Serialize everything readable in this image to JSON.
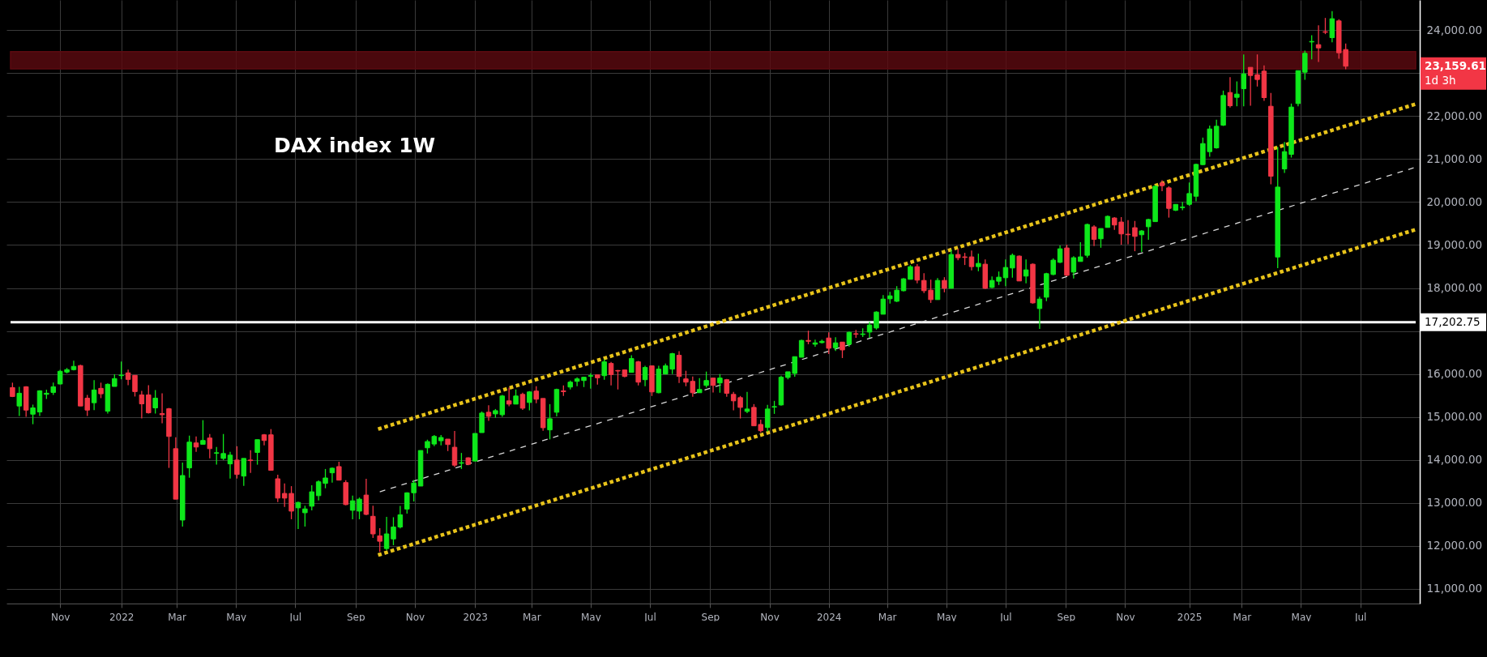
{
  "chart_data": {
    "type": "candlestick",
    "title": "DAX index 1W",
    "x": [
      "2021-09-13",
      "2021-09-20",
      "2021-09-27",
      "2021-10-04",
      "2021-10-11",
      "2021-10-18",
      "2021-10-25",
      "2021-11-01",
      "2021-11-08",
      "2021-11-15",
      "2021-11-22",
      "2021-11-29",
      "2021-12-06",
      "2021-12-13",
      "2021-12-20",
      "2021-12-27",
      "2022-01-03",
      "2022-01-10",
      "2022-01-17",
      "2022-01-24",
      "2022-01-31",
      "2022-02-07",
      "2022-02-14",
      "2022-02-21",
      "2022-02-28",
      "2022-03-07",
      "2022-03-14",
      "2022-03-21",
      "2022-03-28",
      "2022-04-04",
      "2022-04-11",
      "2022-04-18",
      "2022-04-25",
      "2022-05-02",
      "2022-05-09",
      "2022-05-16",
      "2022-05-23",
      "2022-05-30",
      "2022-06-06",
      "2022-06-13",
      "2022-06-20",
      "2022-06-27",
      "2022-07-04",
      "2022-07-11",
      "2022-07-18",
      "2022-07-25",
      "2022-08-01",
      "2022-08-08",
      "2022-08-15",
      "2022-08-22",
      "2022-08-29",
      "2022-09-05",
      "2022-09-12",
      "2022-09-19",
      "2022-09-26",
      "2022-10-03",
      "2022-10-10",
      "2022-10-17",
      "2022-10-24",
      "2022-10-31",
      "2022-11-07",
      "2022-11-14",
      "2022-11-21",
      "2022-11-28",
      "2022-12-05",
      "2022-12-12",
      "2022-12-19",
      "2022-12-26",
      "2023-01-02",
      "2023-01-09",
      "2023-01-16",
      "2023-01-23",
      "2023-01-30",
      "2023-02-06",
      "2023-02-13",
      "2023-02-20",
      "2023-02-27",
      "2023-03-06",
      "2023-03-13",
      "2023-03-20",
      "2023-03-27",
      "2023-04-03",
      "2023-04-10",
      "2023-04-17",
      "2023-04-24",
      "2023-05-01",
      "2023-05-08",
      "2023-05-15",
      "2023-05-22",
      "2023-05-29",
      "2023-06-05",
      "2023-06-12",
      "2023-06-19",
      "2023-06-26",
      "2023-07-03",
      "2023-07-10",
      "2023-07-17",
      "2023-07-24",
      "2023-07-31",
      "2023-08-07",
      "2023-08-14",
      "2023-08-21",
      "2023-08-28",
      "2023-09-04",
      "2023-09-11",
      "2023-09-18",
      "2023-09-25",
      "2023-10-02",
      "2023-10-09",
      "2023-10-16",
      "2023-10-23",
      "2023-10-30",
      "2023-11-06",
      "2023-11-13",
      "2023-11-20",
      "2023-11-27",
      "2023-12-04",
      "2023-12-11",
      "2023-12-18",
      "2023-12-25",
      "2024-01-01",
      "2024-01-08",
      "2024-01-15",
      "2024-01-22",
      "2024-01-29",
      "2024-02-05",
      "2024-02-12",
      "2024-02-19",
      "2024-02-26",
      "2024-03-04",
      "2024-03-11",
      "2024-03-18",
      "2024-03-25",
      "2024-04-01",
      "2024-04-08",
      "2024-04-15",
      "2024-04-22",
      "2024-04-29",
      "2024-05-06",
      "2024-05-13",
      "2024-05-20",
      "2024-05-27",
      "2024-06-03",
      "2024-06-10",
      "2024-06-17",
      "2024-06-24",
      "2024-07-01",
      "2024-07-08",
      "2024-07-15",
      "2024-07-22",
      "2024-07-29",
      "2024-08-05",
      "2024-08-12",
      "2024-08-19",
      "2024-08-26",
      "2024-09-02",
      "2024-09-09",
      "2024-09-16",
      "2024-09-23",
      "2024-09-30",
      "2024-10-07",
      "2024-10-14",
      "2024-10-21",
      "2024-10-28",
      "2024-11-04",
      "2024-11-11",
      "2024-11-18",
      "2024-11-25",
      "2024-12-02",
      "2024-12-09",
      "2024-12-16",
      "2024-12-23",
      "2024-12-30",
      "2025-01-06",
      "2025-01-13",
      "2025-01-20",
      "2025-01-27",
      "2025-02-03",
      "2025-02-10",
      "2025-02-17",
      "2025-02-24",
      "2025-03-03",
      "2025-03-10",
      "2025-03-17",
      "2025-03-24",
      "2025-03-31",
      "2025-04-07",
      "2025-04-14",
      "2025-04-21",
      "2025-04-28",
      "2025-05-05",
      "2025-05-12",
      "2025-05-19",
      "2025-05-26",
      "2025-06-02",
      "2025-06-09",
      "2025-06-16"
    ],
    "ohlc": [
      [
        15684,
        15798,
        15463,
        15476
      ],
      [
        15255,
        15703,
        15021,
        15552
      ],
      [
        15703,
        15716,
        15002,
        15160
      ],
      [
        15065,
        15287,
        14832,
        15211
      ],
      [
        15116,
        15621,
        15021,
        15609
      ],
      [
        15527,
        15634,
        15419,
        15552
      ],
      [
        15571,
        15798,
        15514,
        15703
      ],
      [
        15767,
        16095,
        15760,
        16063
      ],
      [
        16045,
        16139,
        16013,
        16101
      ],
      [
        16101,
        16310,
        16082,
        16177
      ],
      [
        16196,
        16215,
        15255,
        15255
      ],
      [
        15438,
        15514,
        15021,
        15160
      ],
      [
        15331,
        15855,
        15160,
        15628
      ],
      [
        15666,
        15798,
        15438,
        15539
      ],
      [
        15135,
        15779,
        15078,
        15760
      ],
      [
        15710,
        15994,
        15710,
        15893
      ],
      [
        15962,
        16291,
        15874,
        15975
      ],
      [
        16026,
        16101,
        15741,
        15874
      ],
      [
        15969,
        15969,
        15476,
        15590
      ],
      [
        15514,
        15609,
        14964,
        15305
      ],
      [
        15514,
        15741,
        15078,
        15097
      ],
      [
        15211,
        15628,
        15078,
        15438
      ],
      [
        15078,
        15552,
        14851,
        15053
      ],
      [
        15192,
        15211,
        13815,
        14547
      ],
      [
        14263,
        14528,
        13088,
        13088
      ],
      [
        12602,
        13941,
        12450,
        13638
      ],
      [
        13815,
        14566,
        13587,
        14415
      ],
      [
        14396,
        14547,
        14187,
        14301
      ],
      [
        14364,
        14926,
        14364,
        14453
      ],
      [
        14510,
        14604,
        14036,
        14263
      ],
      [
        14156,
        14301,
        13890,
        14168
      ],
      [
        14036,
        14604,
        13998,
        14150
      ],
      [
        13909,
        14187,
        13568,
        14112
      ],
      [
        13998,
        14320,
        13568,
        13663
      ],
      [
        13625,
        14036,
        13398,
        14036
      ],
      [
        13998,
        14225,
        13701,
        13985
      ],
      [
        14175,
        14472,
        13890,
        14472
      ],
      [
        14585,
        14604,
        14339,
        14453
      ],
      [
        14585,
        14718,
        13758,
        13758
      ],
      [
        13562,
        13657,
        13019,
        13113
      ],
      [
        13221,
        13455,
        12905,
        13113
      ],
      [
        13221,
        13391,
        12621,
        12810
      ],
      [
        12886,
        13031,
        12393,
        13012
      ],
      [
        12772,
        12937,
        12450,
        12861
      ],
      [
        12924,
        13410,
        12829,
        13259
      ],
      [
        13170,
        13524,
        13056,
        13492
      ],
      [
        13455,
        13790,
        13341,
        13581
      ],
      [
        13701,
        13827,
        13474,
        13808
      ],
      [
        13846,
        13960,
        13530,
        13530
      ],
      [
        13474,
        13530,
        12943,
        12962
      ],
      [
        12829,
        13170,
        12621,
        13050
      ],
      [
        12810,
        13126,
        12621,
        13088
      ],
      [
        13183,
        13562,
        12715,
        12734
      ],
      [
        12690,
        12937,
        12185,
        12280
      ],
      [
        12235,
        12412,
        11863,
        12109
      ],
      [
        11939,
        12677,
        11901,
        12280
      ],
      [
        12163,
        12668,
        12018,
        12440
      ],
      [
        12440,
        12933,
        12409,
        12724
      ],
      [
        12857,
        13248,
        12750,
        13236
      ],
      [
        13236,
        13532,
        13034,
        13463
      ],
      [
        13393,
        14220,
        13393,
        14220
      ],
      [
        14283,
        14472,
        14151,
        14428
      ],
      [
        14371,
        14580,
        14321,
        14548
      ],
      [
        14447,
        14580,
        14340,
        14523
      ],
      [
        14485,
        14485,
        14207,
        14359
      ],
      [
        14296,
        14674,
        13835,
        13879
      ],
      [
        13923,
        14163,
        13791,
        13936
      ],
      [
        14050,
        14062,
        13879,
        13898
      ],
      [
        13974,
        14617,
        13974,
        14617
      ],
      [
        14636,
        15129,
        14636,
        15091
      ],
      [
        15110,
        15274,
        14908,
        15015
      ],
      [
        15072,
        15185,
        14983,
        15147
      ],
      [
        15053,
        15513,
        15002,
        15488
      ],
      [
        15375,
        15684,
        15248,
        15299
      ],
      [
        15299,
        15640,
        15299,
        15488
      ],
      [
        15526,
        15564,
        15166,
        15204
      ],
      [
        15337,
        15602,
        15154,
        15583
      ],
      [
        15602,
        15715,
        15318,
        15413
      ],
      [
        15431,
        15431,
        14680,
        14750
      ],
      [
        14700,
        15299,
        14479,
        14958
      ],
      [
        15110,
        15659,
        15015,
        15640
      ],
      [
        15608,
        15734,
        15488,
        15589
      ],
      [
        15696,
        15848,
        15640,
        15810
      ],
      [
        15829,
        15924,
        15715,
        15886
      ],
      [
        15848,
        15936,
        15696,
        15924
      ],
      [
        15949,
        16018,
        15659,
        15961
      ],
      [
        15980,
        15980,
        15753,
        15911
      ],
      [
        15961,
        16340,
        15867,
        16283
      ],
      [
        16245,
        16283,
        15734,
        15987
      ],
      [
        16081,
        16094,
        15640,
        16069
      ],
      [
        16094,
        16094,
        15924,
        15943
      ],
      [
        16037,
        16435,
        16037,
        16359
      ],
      [
        16283,
        16302,
        15734,
        15810
      ],
      [
        15867,
        16189,
        15715,
        16151
      ],
      [
        16189,
        16189,
        15488,
        15583
      ],
      [
        15564,
        16189,
        15551,
        16113
      ],
      [
        15999,
        16245,
        15999,
        16189
      ],
      [
        16113,
        16492,
        15999,
        16473
      ],
      [
        16435,
        16529,
        15791,
        15943
      ],
      [
        15886,
        16075,
        15715,
        15810
      ],
      [
        15829,
        15943,
        15469,
        15564
      ],
      [
        15564,
        15905,
        15564,
        15640
      ],
      [
        15734,
        16056,
        15684,
        15848
      ],
      [
        15905,
        15905,
        15570,
        15734
      ],
      [
        15791,
        15999,
        15564,
        15905
      ],
      [
        15867,
        15886,
        15469,
        15551
      ],
      [
        15526,
        15583,
        15154,
        15375
      ],
      [
        15450,
        15488,
        14965,
        15223
      ],
      [
        15129,
        15583,
        15091,
        15185
      ],
      [
        15223,
        15299,
        14794,
        14794
      ],
      [
        14826,
        14939,
        14643,
        14680
      ],
      [
        14756,
        15280,
        14662,
        15185
      ],
      [
        15230,
        15375,
        15072,
        15242
      ],
      [
        15280,
        15961,
        15261,
        15924
      ],
      [
        15919,
        16051,
        15875,
        16051
      ],
      [
        16013,
        16403,
        15937,
        16403
      ],
      [
        16390,
        16799,
        16390,
        16780
      ],
      [
        16780,
        17007,
        16692,
        16761
      ],
      [
        16692,
        16799,
        16636,
        16724
      ],
      [
        16730,
        16799,
        16711,
        16761
      ],
      [
        16837,
        16969,
        16466,
        16598
      ],
      [
        16610,
        16856,
        16535,
        16724
      ],
      [
        16742,
        16742,
        16371,
        16560
      ],
      [
        16692,
        16988,
        16636,
        16969
      ],
      [
        16937,
        17026,
        16843,
        16925
      ],
      [
        16919,
        17063,
        16862,
        16931
      ],
      [
        16975,
        17214,
        16843,
        17139
      ],
      [
        17070,
        17459,
        17032,
        17441
      ],
      [
        17390,
        17837,
        17390,
        17742
      ],
      [
        17749,
        17912,
        17636,
        17818
      ],
      [
        17692,
        18044,
        17673,
        17950
      ],
      [
        17937,
        18233,
        17919,
        18214
      ],
      [
        18202,
        18535,
        18202,
        18497
      ],
      [
        18497,
        18554,
        18107,
        18183
      ],
      [
        18176,
        18346,
        17881,
        17937
      ],
      [
        17950,
        18195,
        17654,
        17730
      ],
      [
        17730,
        18233,
        17730,
        18176
      ],
      [
        18176,
        18252,
        17900,
        17994
      ],
      [
        17994,
        18893,
        17994,
        18780
      ],
      [
        18780,
        18912,
        18648,
        18705
      ],
      [
        18724,
        18818,
        18535,
        18711
      ],
      [
        18724,
        18874,
        18409,
        18497
      ],
      [
        18497,
        18799,
        18390,
        18573
      ],
      [
        18554,
        18667,
        17975,
        17994
      ],
      [
        18013,
        18271,
        17994,
        18176
      ],
      [
        18158,
        18384,
        18070,
        18252
      ],
      [
        18239,
        18667,
        18044,
        18478
      ],
      [
        18466,
        18799,
        18239,
        18761
      ],
      [
        18742,
        18761,
        18164,
        18164
      ],
      [
        18277,
        18667,
        18107,
        18422
      ],
      [
        18554,
        18573,
        17636,
        17654
      ],
      [
        17522,
        17799,
        17051,
        17742
      ],
      [
        17786,
        18352,
        17692,
        18334
      ],
      [
        18315,
        18686,
        18296,
        18648
      ],
      [
        18598,
        18988,
        18579,
        18912
      ],
      [
        18931,
        19007,
        18277,
        18296
      ],
      [
        18371,
        18742,
        18220,
        18705
      ],
      [
        18617,
        19063,
        18617,
        18724
      ],
      [
        18761,
        19497,
        18705,
        19478
      ],
      [
        19422,
        19459,
        18975,
        19132
      ],
      [
        19145,
        19384,
        18937,
        19384
      ],
      [
        19409,
        19686,
        19409,
        19667
      ],
      [
        19629,
        19648,
        19352,
        19466
      ],
      [
        19535,
        19648,
        19007,
        19258
      ],
      [
        19252,
        19579,
        19019,
        19239
      ],
      [
        19403,
        19560,
        18856,
        19201
      ],
      [
        19239,
        19346,
        18837,
        19327
      ],
      [
        19425,
        19613,
        19123,
        19594
      ],
      [
        19544,
        20393,
        19544,
        20367
      ],
      [
        20443,
        20506,
        20254,
        20380
      ],
      [
        20330,
        20367,
        19638,
        19852
      ],
      [
        19808,
        19946,
        19789,
        19946
      ],
      [
        19871,
        20003,
        19808,
        19884
      ],
      [
        19946,
        20455,
        19915,
        20198
      ],
      [
        20135,
        20895,
        20015,
        20876
      ],
      [
        20870,
        21499,
        20858,
        21360
      ],
      [
        21172,
        21781,
        21052,
        21700
      ],
      [
        21260,
        21914,
        21241,
        21763
      ],
      [
        21788,
        22592,
        21769,
        22479
      ],
      [
        22548,
        22907,
        22196,
        22240
      ],
      [
        22435,
        22806,
        22228,
        22511
      ],
      [
        22636,
        23434,
        22228,
        22982
      ],
      [
        23133,
        23133,
        22240,
        22944
      ],
      [
        22963,
        23434,
        22687,
        22850
      ],
      [
        23045,
        23177,
        22353,
        22429
      ],
      [
        22228,
        22536,
        20411,
        20600
      ],
      [
        18721,
        21279,
        18463,
        20348
      ],
      [
        20770,
        21398,
        20675,
        21172
      ],
      [
        21109,
        22291,
        21034,
        22209
      ],
      [
        22291,
        23057,
        22228,
        23057
      ],
      [
        23020,
        23522,
        22844,
        23460
      ],
      [
        23724,
        23881,
        23321,
        23736
      ],
      [
        23661,
        24113,
        23258,
        23585
      ],
      [
        23962,
        24283,
        23906,
        23950
      ],
      [
        23824,
        24440,
        23717,
        24264
      ],
      [
        24214,
        24251,
        23334,
        23472
      ],
      [
        23548,
        23686,
        23089,
        23159.61
      ]
    ],
    "colors": [
      "#f23645",
      "#0ee81b",
      "#f23645",
      "#0ee81b",
      "#0ee81b",
      "#0ee81b",
      "#0ee81b",
      "#0ee81b",
      "#0ee81b",
      "#0ee81b",
      "#f23645",
      "#f23645",
      "#0ee81b",
      "#f23645",
      "#0ee81b",
      "#0ee81b",
      "#0ee81b",
      "#f23645",
      "#f23645",
      "#f23645",
      "#f23645",
      "#0ee81b",
      "#f23645",
      "#f23645",
      "#f23645",
      "#0ee81b",
      "#0ee81b",
      "#f23645",
      "#0ee81b",
      "#f23645",
      "#0ee81b",
      "#0ee81b",
      "#0ee81b",
      "#f23645",
      "#0ee81b",
      "#f23645",
      "#0ee81b",
      "#f23645",
      "#f23645",
      "#f23645",
      "#f23645",
      "#f23645",
      "#0ee81b",
      "#0ee81b",
      "#0ee81b",
      "#0ee81b",
      "#0ee81b",
      "#0ee81b",
      "#f23645",
      "#f23645",
      "#0ee81b",
      "#0ee81b",
      "#f23645",
      "#f23645",
      "#f23645",
      "#0ee81b",
      "#0ee81b",
      "#0ee81b",
      "#0ee81b",
      "#0ee81b",
      "#0ee81b",
      "#0ee81b",
      "#0ee81b",
      "#0ee81b",
      "#f23645",
      "#f23645",
      "#0ee81b",
      "#f23645",
      "#0ee81b",
      "#0ee81b",
      "#f23645",
      "#0ee81b",
      "#0ee81b",
      "#f23645",
      "#0ee81b",
      "#f23645",
      "#0ee81b",
      "#f23645",
      "#f23645",
      "#0ee81b",
      "#0ee81b",
      "#f23645",
      "#0ee81b",
      "#0ee81b",
      "#0ee81b",
      "#0ee81b",
      "#f23645",
      "#0ee81b",
      "#f23645",
      "#f23645",
      "#f23645",
      "#0ee81b",
      "#f23645",
      "#0ee81b",
      "#f23645",
      "#0ee81b",
      "#0ee81b",
      "#0ee81b",
      "#f23645",
      "#f23645",
      "#f23645",
      "#0ee81b",
      "#0ee81b",
      "#f23645",
      "#0ee81b",
      "#f23645",
      "#f23645",
      "#f23645",
      "#0ee81b",
      "#f23645",
      "#f23645",
      "#0ee81b",
      "#0ee81b",
      "#0ee81b",
      "#0ee81b",
      "#0ee81b",
      "#0ee81b",
      "#f23645",
      "#0ee81b",
      "#0ee81b",
      "#f23645",
      "#0ee81b",
      "#f23645",
      "#0ee81b",
      "#f23645",
      "#0ee81b",
      "#0ee81b",
      "#0ee81b",
      "#0ee81b",
      "#0ee81b",
      "#0ee81b",
      "#0ee81b",
      "#0ee81b",
      "#f23645",
      "#f23645",
      "#f23645",
      "#0ee81b",
      "#f23645",
      "#0ee81b",
      "#f23645",
      "#f23645",
      "#f23645",
      "#0ee81b",
      "#f23645",
      "#0ee81b",
      "#0ee81b",
      "#0ee81b",
      "#0ee81b",
      "#f23645",
      "#0ee81b",
      "#f23645",
      "#0ee81b",
      "#0ee81b",
      "#0ee81b",
      "#0ee81b",
      "#f23645",
      "#0ee81b",
      "#0ee81b",
      "#0ee81b",
      "#f23645",
      "#0ee81b",
      "#0ee81b",
      "#f23645",
      "#f23645",
      "#f23645",
      "#f23645",
      "#0ee81b",
      "#0ee81b",
      "#0ee81b",
      "#f23645",
      "#f23645",
      "#0ee81b",
      "#0ee81b",
      "#0ee81b",
      "#0ee81b",
      "#0ee81b",
      "#0ee81b",
      "#0ee81b",
      "#0ee81b",
      "#f23645",
      "#0ee81b",
      "#0ee81b",
      "#f23645",
      "#f23645",
      "#f23645",
      "#f23645",
      "#0ee81b",
      "#0ee81b",
      "#0ee81b",
      "#0ee81b",
      "#0ee81b",
      "#0ee81b",
      "#f23645",
      "#f23645",
      "#0ee81b",
      "#f23645",
      "#f23645"
    ],
    "series": [
      {
        "type": "line",
        "x": [
          "2022-09-26",
          "2025-08-27"
        ],
        "values": [
          14730,
          22280
        ],
        "color": "#e8c31a",
        "line_style": "dotted"
      },
      {
        "type": "line",
        "x": [
          "2022-09-26",
          "2025-08-27"
        ],
        "values": [
          13260,
          20810
        ],
        "color": "#d9d9d9",
        "line_style": "dashed"
      },
      {
        "type": "line",
        "x": [
          "2022-09-26",
          "2025-08-27"
        ],
        "values": [
          11800,
          19360
        ],
        "color": "#e8c31a",
        "line_style": "dotted"
      }
    ],
    "xlim": [
      "2021-09-11",
      "2025-08-27"
    ],
    "xticks": [
      {
        "value": "2021-11-01",
        "label": "Nov"
      },
      {
        "value": "2022-01-03",
        "label": "2022"
      },
      {
        "value": "2022-03-01",
        "label": "Mar"
      },
      {
        "value": "2022-05-01",
        "label": "May"
      },
      {
        "value": "2022-07-01",
        "label": "Jul"
      },
      {
        "value": "2022-09-01",
        "label": "Sep"
      },
      {
        "value": "2022-11-01",
        "label": "Nov"
      },
      {
        "value": "2023-01-02",
        "label": "2023"
      },
      {
        "value": "2023-03-01",
        "label": "Mar"
      },
      {
        "value": "2023-05-01",
        "label": "May"
      },
      {
        "value": "2023-07-01",
        "label": "Jul"
      },
      {
        "value": "2023-09-01",
        "label": "Sep"
      },
      {
        "value": "2023-11-01",
        "label": "Nov"
      },
      {
        "value": "2024-01-01",
        "label": "2024"
      },
      {
        "value": "2024-03-01",
        "label": "Mar"
      },
      {
        "value": "2024-05-01",
        "label": "May"
      },
      {
        "value": "2024-07-01",
        "label": "Jul"
      },
      {
        "value": "2024-09-01",
        "label": "Sep"
      },
      {
        "value": "2024-11-01",
        "label": "Nov"
      },
      {
        "value": "2025-01-06",
        "label": "2025"
      },
      {
        "value": "2025-03-01",
        "label": "Mar"
      },
      {
        "value": "2025-05-01",
        "label": "May"
      },
      {
        "value": "2025-07-01",
        "label": "Jul"
      }
    ],
    "ylim": [
      10660,
      24700
    ],
    "yticks": [
      {
        "value": 11000,
        "label": "11,000.00"
      },
      {
        "value": 12000,
        "label": "12,000.00"
      },
      {
        "value": 13000,
        "label": "13,000.00"
      },
      {
        "value": 14000,
        "label": "14,000.00"
      },
      {
        "value": 15000,
        "label": "15,000.00"
      },
      {
        "value": 16000,
        "label": "16,000.00"
      },
      {
        "value": 17000,
        "label": null
      },
      {
        "value": 18000,
        "label": "18,000.00"
      },
      {
        "value": 19000,
        "label": "19,000.00"
      },
      {
        "value": 20000,
        "label": "20,000.00"
      },
      {
        "value": 21000,
        "label": "21,000.00"
      },
      {
        "value": 22000,
        "label": "22,000.00"
      },
      {
        "value": 23000,
        "label": null
      },
      {
        "value": 24000,
        "label": "24,000.00"
      }
    ],
    "grid": true,
    "ref_lines": [
      {
        "axis": "y",
        "value": 17202.75,
        "label": "17,202.75",
        "color": "#ffffff"
      }
    ],
    "bands": [
      {
        "axis": "y",
        "from": 23100,
        "to": 23500,
        "color": "#5c0a10"
      }
    ],
    "annotations": [
      "23,159.61",
      "1d 3h"
    ]
  }
}
